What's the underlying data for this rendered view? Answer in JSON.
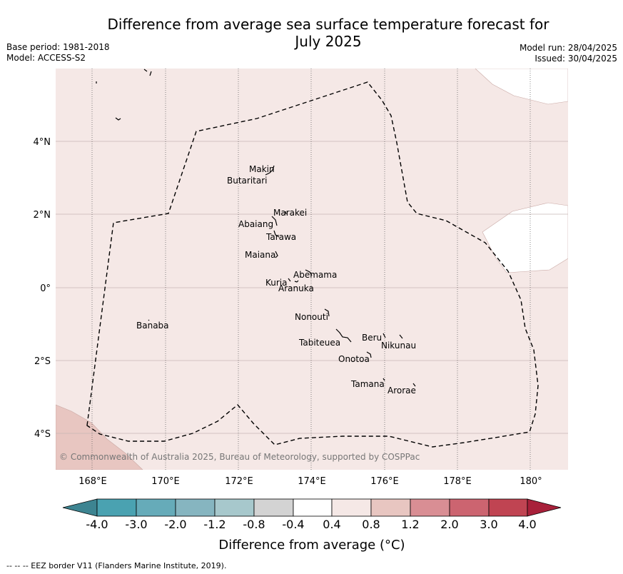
{
  "header": {
    "title_line1": "Difference from average sea surface temperature forecast for",
    "title_line2": "July 2025",
    "base_period": "Base period: 1981-2018",
    "model": "Model: ACCESS-S2",
    "model_run": "Model run: 28/04/2025",
    "issued": "Issued: 30/04/2025"
  },
  "map": {
    "longitude_ticks": [
      "168°E",
      "170°E",
      "172°E",
      "174°E",
      "176°E",
      "178°E",
      "180°"
    ],
    "latitude_ticks": [
      "4°N",
      "2°N",
      "0°",
      "2°S",
      "4°S"
    ],
    "islands": [
      "Makin",
      "Butaritari",
      "Marakei",
      "Abaiang",
      "Tarawa",
      "Maiana",
      "Abemama",
      "Kuria",
      "Aranuka",
      "Nonouti",
      "Banaba",
      "Beru",
      "Nikunau",
      "Tabiteuea",
      "Onotoa",
      "Tamana",
      "Arorae"
    ],
    "copyright": "© Commonwealth of Australia 2025, Bureau of Meteorology, supported by COSPPac",
    "colors": {
      "ocean_0_4_to_0_8": "#f5e8e6",
      "ocean_0_8_to_1_2": "#e8c6c1",
      "land": "#ffffff",
      "gridline": "#c8b6b4",
      "eez_border": "#000000"
    }
  },
  "colorbar": {
    "tick_labels": [
      "-4.0",
      "-3.0",
      "-2.0",
      "-1.2",
      "-0.8",
      "-0.4",
      "0.4",
      "0.8",
      "1.2",
      "2.0",
      "3.0",
      "4.0"
    ],
    "colors": [
      "#3d8491",
      "#4aa2b1",
      "#66abb9",
      "#86b5c0",
      "#a7c8cc",
      "#d3d3d3",
      "#ffffff",
      "#f5e8e6",
      "#e8c6c1",
      "#d98e94",
      "#cc6470",
      "#c04452",
      "#a8203a"
    ],
    "label": "Difference from average (°C)"
  },
  "footer": {
    "eez_note": "--  --  -- EEZ border V11 (Flanders Marine Institute, 2019)."
  }
}
